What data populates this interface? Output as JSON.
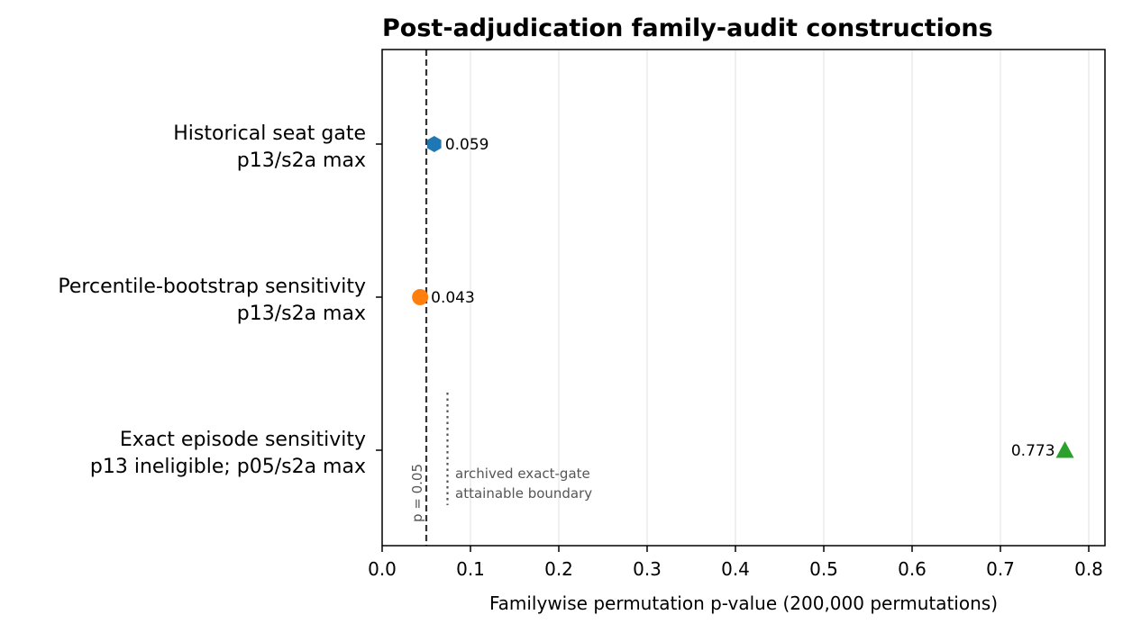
{
  "chart_data": {
    "type": "scatter",
    "title": "Post-adjudication family-audit constructions",
    "xlabel": "Familywise permutation p-value (200,000 permutations)",
    "xlim": [
      0.0,
      0.82
    ],
    "xticks": [
      "0.0",
      "0.1",
      "0.2",
      "0.3",
      "0.4",
      "0.5",
      "0.6",
      "0.7",
      "0.8"
    ],
    "grid": "x",
    "points": [
      {
        "label_line1": "Historical seat gate",
        "label_line2": "p13/s2a max",
        "value": 0.059,
        "value_label": "0.059",
        "marker": "hexagon",
        "color": "#1f77b4"
      },
      {
        "label_line1": "Percentile-bootstrap sensitivity",
        "label_line2": "p13/s2a max",
        "value": 0.043,
        "value_label": "0.043",
        "marker": "circle",
        "color": "#ff7f0e"
      },
      {
        "label_line1": "Exact episode sensitivity",
        "label_line2": "p13 ineligible; p05/s2a max",
        "value": 0.773,
        "value_label": "0.773",
        "marker": "triangle",
        "color": "#2ca02c"
      }
    ],
    "reference_lines": [
      {
        "value": 0.05,
        "style": "dashed",
        "color": "#333333",
        "label": "p = 0.05"
      },
      {
        "value": 0.075,
        "style": "dotted",
        "color": "#555555",
        "label_line1": "archived exact-gate",
        "label_line2": "attainable boundary"
      }
    ]
  }
}
